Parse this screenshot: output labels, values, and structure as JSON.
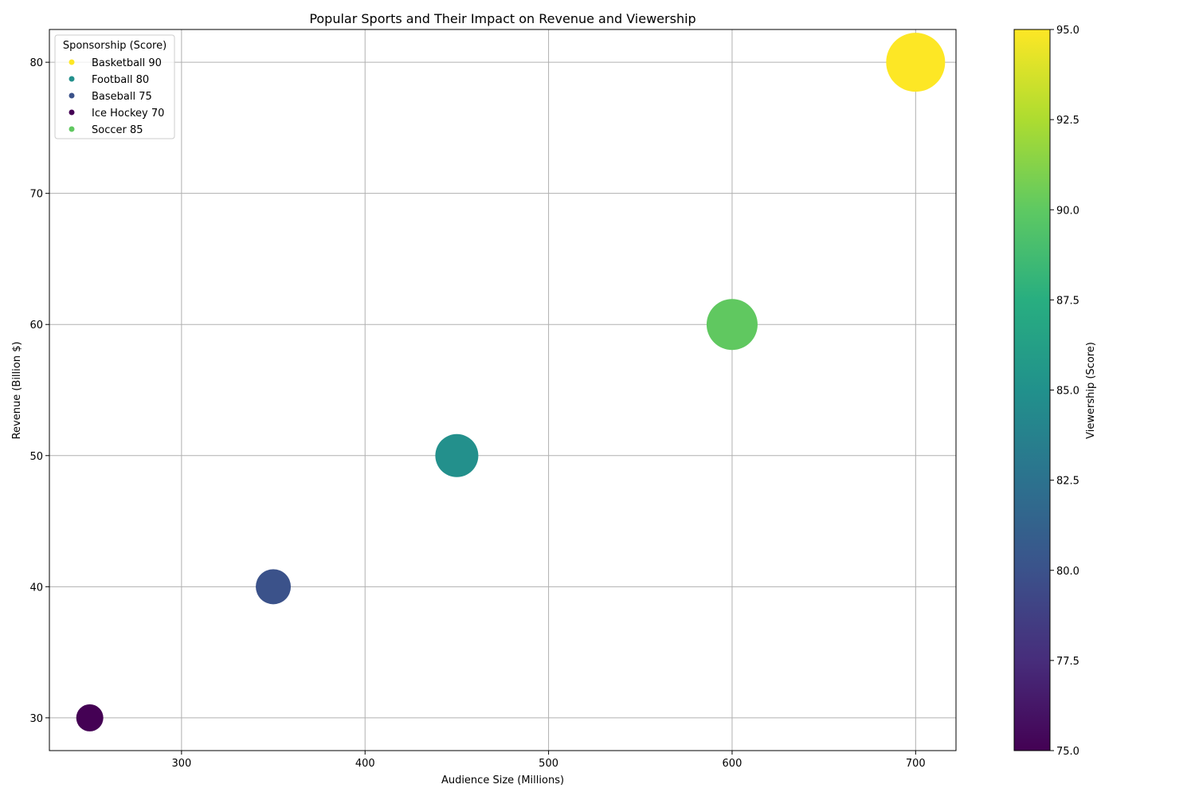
{
  "chart_data": {
    "type": "scatter",
    "title": "Popular Sports and Their Impact on Revenue and Viewership",
    "xlabel": "Audience Size (Millions)",
    "ylabel": "Revenue (Billion $)",
    "xlim": [
      228,
      722
    ],
    "ylim": [
      27.5,
      82.5
    ],
    "xticks": [
      "300",
      "400",
      "500",
      "600",
      "700"
    ],
    "yticks": [
      "30",
      "40",
      "50",
      "60",
      "70",
      "80"
    ],
    "grid": true,
    "legend": {
      "title": "Sponsorship (Score)",
      "placement": "top-left",
      "entries": [
        "Basketball 90",
        "Football 80",
        "Baseball 75",
        "Ice Hockey 70",
        "Soccer 85"
      ]
    },
    "colorbar": {
      "label": "Viewership (Score)",
      "range": [
        75,
        95
      ],
      "ticks": [
        "75.0",
        "77.5",
        "80.0",
        "82.5",
        "85.0",
        "87.5",
        "90.0",
        "92.5",
        "95.0"
      ],
      "colormap": "viridis"
    },
    "points": [
      {
        "name": "Basketball",
        "sponsorship": 90,
        "x": 700,
        "y": 80,
        "viewership": 95
      },
      {
        "name": "Football",
        "sponsorship": 80,
        "x": 450,
        "y": 50,
        "viewership": 85
      },
      {
        "name": "Baseball",
        "sponsorship": 75,
        "x": 350,
        "y": 40,
        "viewership": 80
      },
      {
        "name": "Ice Hockey",
        "sponsorship": 70,
        "x": 250,
        "y": 30,
        "viewership": 75
      },
      {
        "name": "Soccer",
        "sponsorship": 85,
        "x": 600,
        "y": 60,
        "viewership": 90
      }
    ]
  }
}
